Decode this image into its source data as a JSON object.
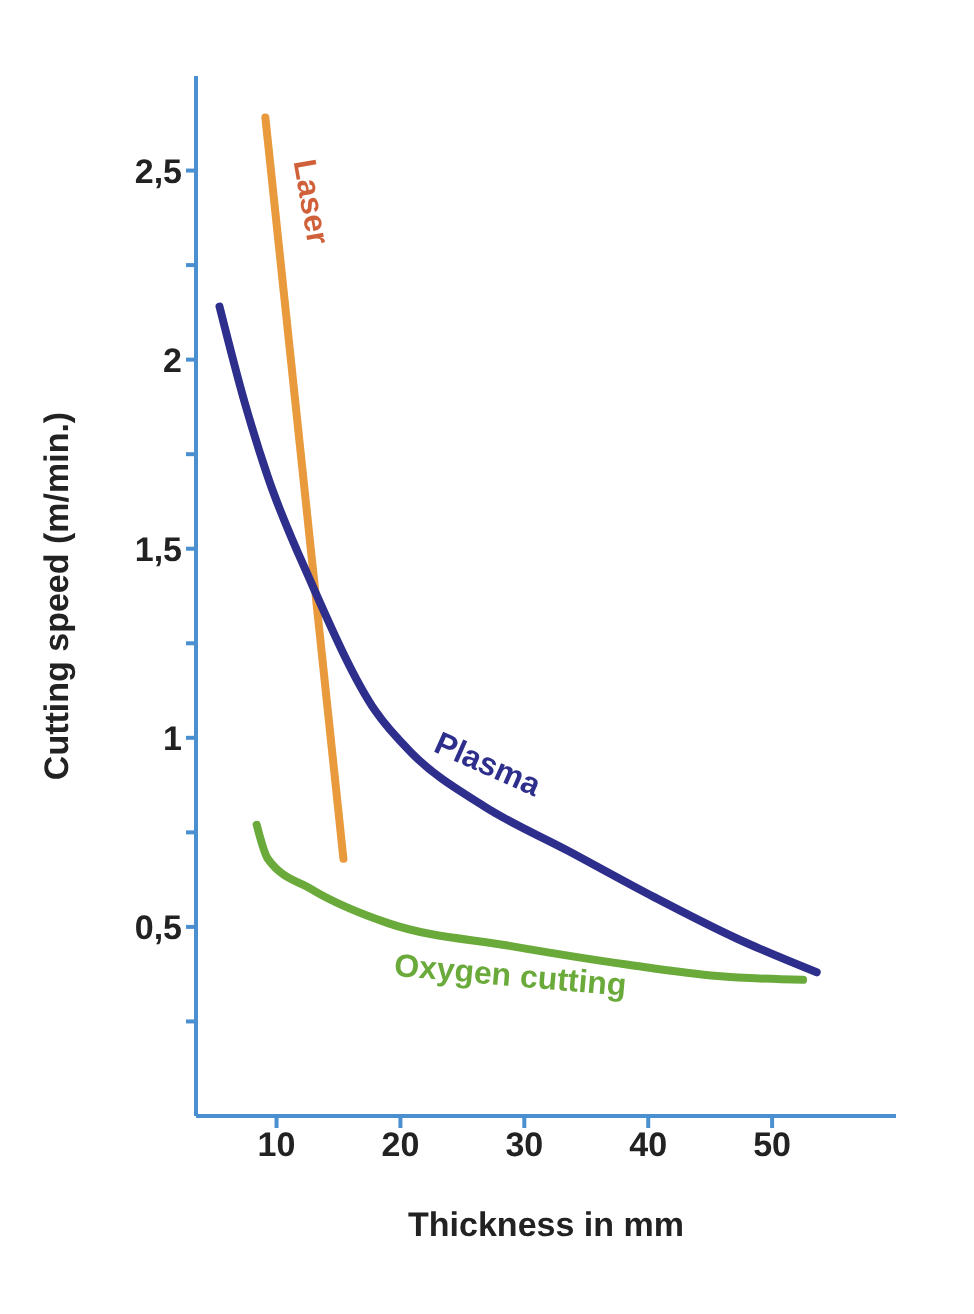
{
  "chart_data": {
    "type": "line",
    "xlabel": "Thickness in mm",
    "ylabel": "Cutting speed  (m/min.)",
    "xlim": [
      3.5,
      60
    ],
    "xticks": [
      10,
      20,
      30,
      40,
      50
    ],
    "ylim": [
      0,
      2.75
    ],
    "yticks": [
      {
        "value": 0.25,
        "label": null
      },
      {
        "value": 0.5,
        "label": "0,5"
      },
      {
        "value": 0.75,
        "label": null
      },
      {
        "value": 1,
        "label": "1"
      },
      {
        "value": 1.25,
        "label": null
      },
      {
        "value": 1.5,
        "label": "1,5"
      },
      {
        "value": 1.75,
        "label": null
      },
      {
        "value": 2,
        "label": "2"
      },
      {
        "value": 2.25,
        "label": null
      },
      {
        "value": 2.5,
        "label": "2,5"
      }
    ],
    "grid": false,
    "legend": false,
    "marker": "none",
    "line_style": "solid",
    "series": [
      {
        "name": "Laser",
        "color": "#e89a3c",
        "x": [
          9.1,
          15.4
        ],
        "values": [
          2.64,
          0.68
        ]
      },
      {
        "name": "Plasma",
        "color": "#2e2e8c",
        "x": [
          5.4,
          7.4,
          9.3,
          12.8,
          18,
          20.9,
          26.7,
          33.6,
          40.4,
          47.1,
          53.6
        ],
        "values": [
          2.14,
          1.89,
          1.69,
          1.41,
          1.07,
          0.96,
          0.82,
          0.7,
          0.58,
          0.47,
          0.38
        ]
      },
      {
        "name": "Oxygen cutting",
        "color": "#6aaa3a",
        "x": [
          8.4,
          9.3,
          12.8,
          19,
          28.8,
          38.4,
          45.6,
          52.5
        ],
        "values": [
          0.77,
          0.68,
          0.6,
          0.51,
          0.45,
          0.4,
          0.37,
          0.36
        ]
      }
    ]
  }
}
